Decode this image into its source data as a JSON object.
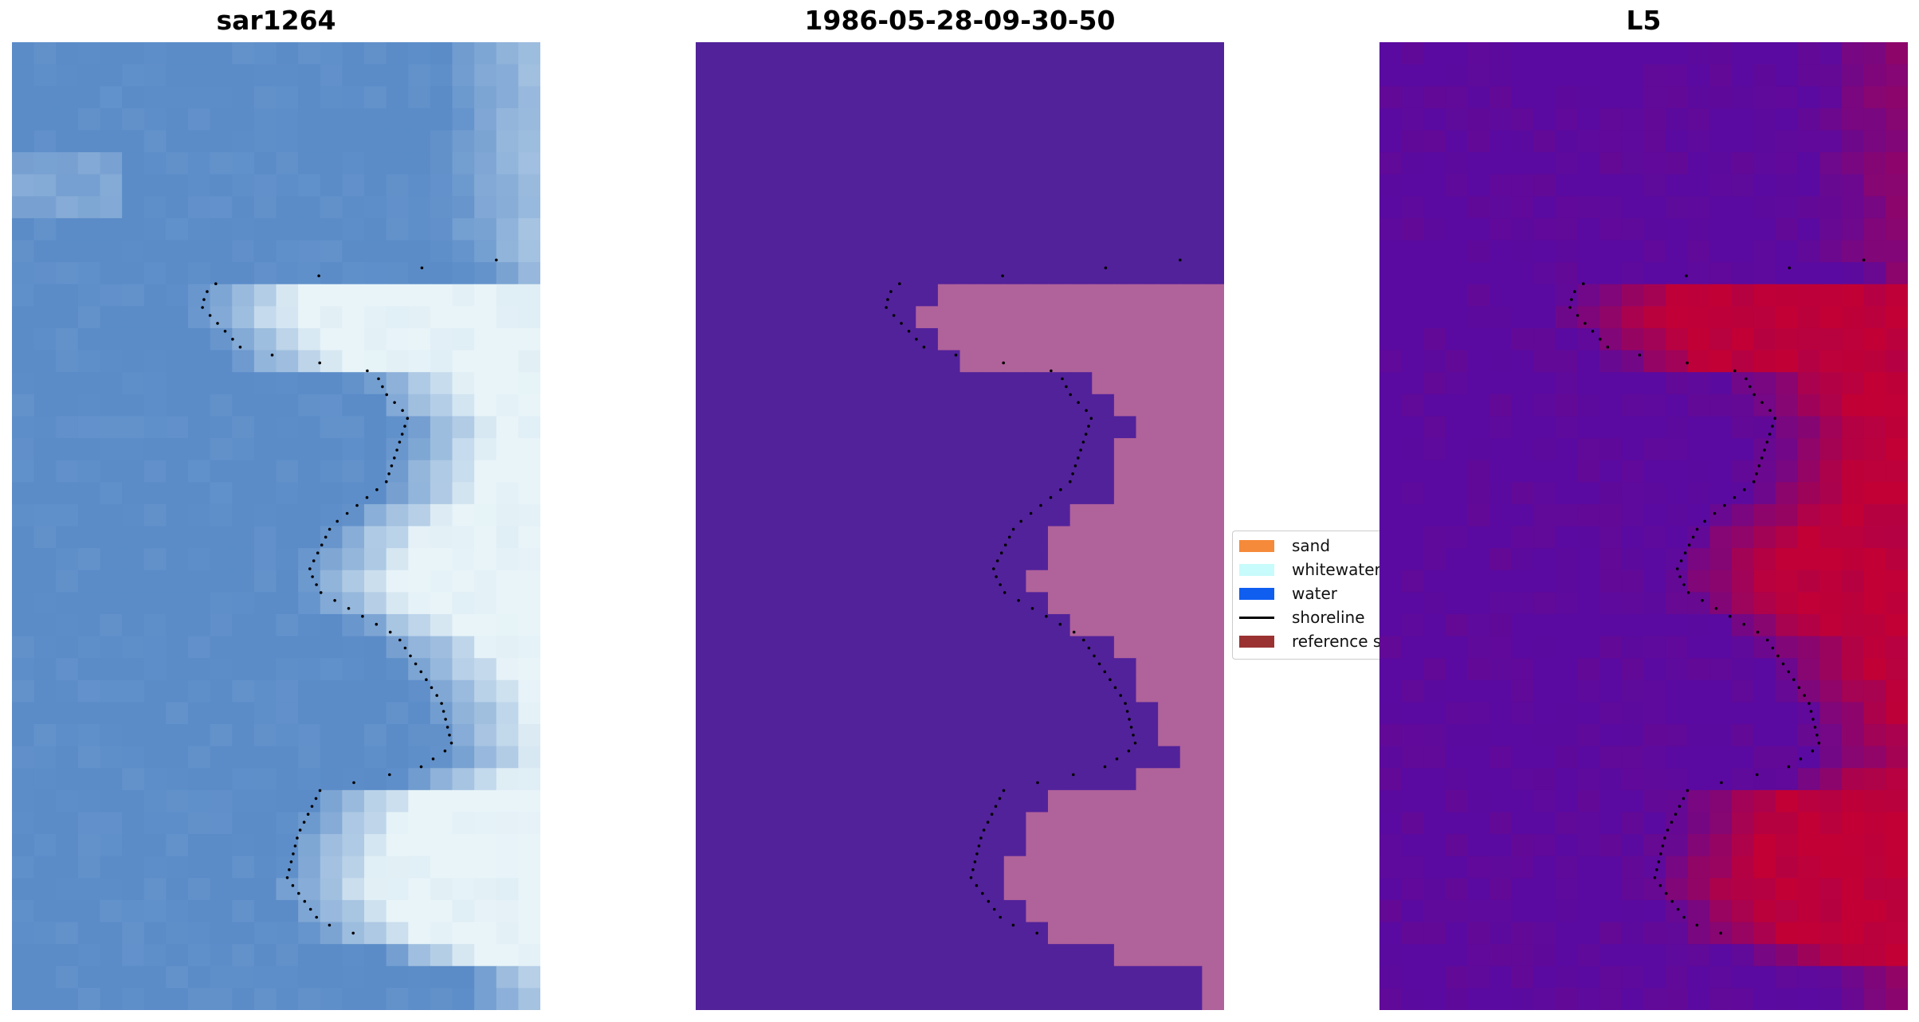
{
  "panels": [
    {
      "title": "sar1264"
    },
    {
      "title": "1986-05-28-09-30-50"
    },
    {
      "title": "L5"
    }
  ],
  "legend": {
    "items": [
      {
        "label": "sand",
        "kind": "patch",
        "color": "#f58a3a"
      },
      {
        "label": "whitewater",
        "kind": "patch",
        "color": "#c8fbfb"
      },
      {
        "label": "water",
        "kind": "patch",
        "color": "#0f5ef0"
      },
      {
        "label": "shoreline",
        "kind": "line",
        "color": "#000000"
      },
      {
        "label": "reference shoreline",
        "kind": "patch",
        "color": "#9a3232"
      }
    ]
  },
  "colors": {
    "rgb_water": "#5b8cc8",
    "rgb_whitewater": "#e8f4f8",
    "class_background": "#52229a",
    "class_sand_overlay": "#b0629a",
    "index_low": "#5a0aa0",
    "index_high": "#c20035",
    "shoreline_dots": "#000000"
  }
}
